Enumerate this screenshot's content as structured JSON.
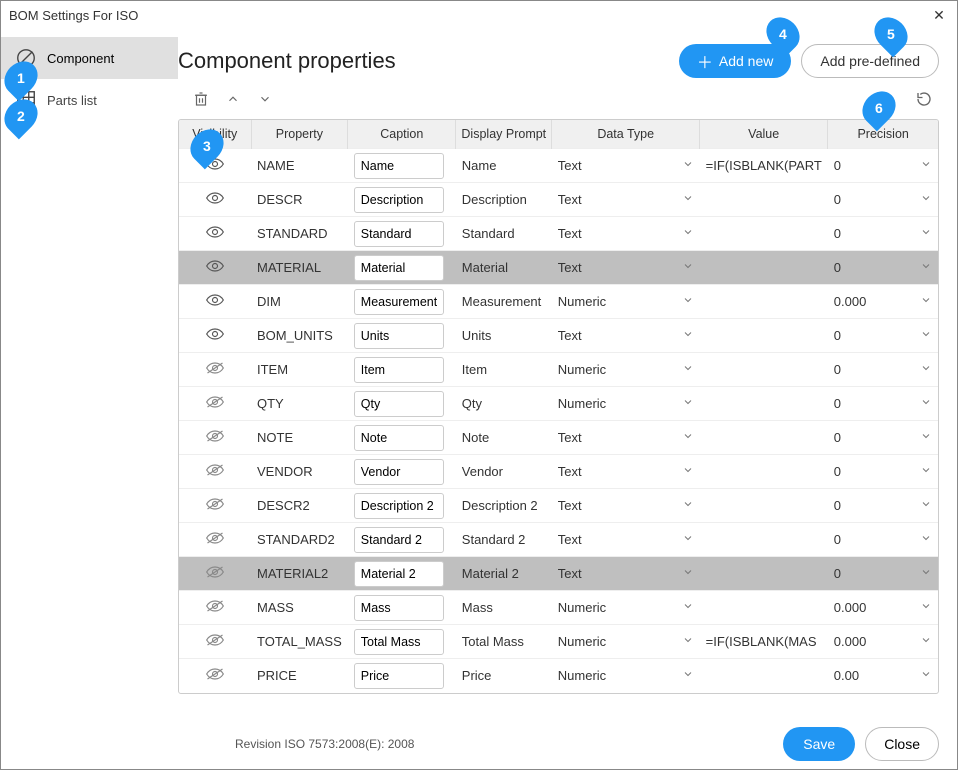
{
  "window": {
    "title": "BOM Settings For  ISO"
  },
  "sidebar": {
    "items": [
      {
        "label": "Component",
        "icon": "component",
        "active": true
      },
      {
        "label": "Parts list",
        "icon": "partslist",
        "active": false
      }
    ]
  },
  "header": {
    "title": "Component properties",
    "add_new": "Add new",
    "add_predefined": "Add pre-defined"
  },
  "columns": [
    "Visibility",
    "Property",
    "Caption",
    "Display Prompt",
    "Data Type",
    "Value",
    "Precision"
  ],
  "rows": [
    {
      "visible": true,
      "property": "NAME",
      "caption": "Name",
      "prompt": "Name",
      "dtype": "Text",
      "dtype_disabled": true,
      "value": "=IF(ISBLANK(PART",
      "precision": "0",
      "selected": false
    },
    {
      "visible": true,
      "property": "DESCR",
      "caption": "Description",
      "prompt": "Description",
      "dtype": "Text",
      "dtype_disabled": false,
      "value": "",
      "precision": "0",
      "selected": false
    },
    {
      "visible": true,
      "property": "STANDARD",
      "caption": "Standard",
      "prompt": "Standard",
      "dtype": "Text",
      "dtype_disabled": false,
      "value": "",
      "precision": "0",
      "selected": false
    },
    {
      "visible": true,
      "property": "MATERIAL",
      "caption": "Material",
      "prompt": "Material",
      "dtype": "Text",
      "dtype_disabled": false,
      "value": "",
      "precision": "0",
      "selected": true
    },
    {
      "visible": true,
      "property": "DIM",
      "caption": "Measurement",
      "prompt": "Measurement",
      "dtype": "Numeric",
      "dtype_disabled": false,
      "value": "",
      "precision": "0.000",
      "selected": false
    },
    {
      "visible": true,
      "property": "BOM_UNITS",
      "caption": "Units",
      "prompt": "Units",
      "dtype": "Text",
      "dtype_disabled": true,
      "value": "",
      "precision": "0",
      "selected": false
    },
    {
      "visible": false,
      "property": "ITEM",
      "caption": "Item",
      "prompt": "Item",
      "dtype": "Numeric",
      "dtype_disabled": false,
      "value": "",
      "precision": "0",
      "selected": false
    },
    {
      "visible": false,
      "property": "QTY",
      "caption": "Qty",
      "prompt": "Qty",
      "dtype": "Numeric",
      "dtype_disabled": true,
      "value": "",
      "precision": "0",
      "selected": false
    },
    {
      "visible": false,
      "property": "NOTE",
      "caption": "Note",
      "prompt": "Note",
      "dtype": "Text",
      "dtype_disabled": false,
      "value": "",
      "precision": "0",
      "selected": false
    },
    {
      "visible": false,
      "property": "VENDOR",
      "caption": "Vendor",
      "prompt": "Vendor",
      "dtype": "Text",
      "dtype_disabled": false,
      "value": "",
      "precision": "0",
      "selected": false
    },
    {
      "visible": false,
      "property": "DESCR2",
      "caption": "Description 2",
      "prompt": "Description 2",
      "dtype": "Text",
      "dtype_disabled": false,
      "value": "",
      "precision": "0",
      "selected": false
    },
    {
      "visible": false,
      "property": "STANDARD2",
      "caption": "Standard 2",
      "prompt": "Standard 2",
      "dtype": "Text",
      "dtype_disabled": false,
      "value": "",
      "precision": "0",
      "selected": false
    },
    {
      "visible": false,
      "property": "MATERIAL2",
      "caption": "Material 2",
      "prompt": "Material 2",
      "dtype": "Text",
      "dtype_disabled": false,
      "value": "",
      "precision": "0",
      "selected": true
    },
    {
      "visible": false,
      "property": "MASS",
      "caption": "Mass",
      "prompt": "Mass",
      "dtype": "Numeric",
      "dtype_disabled": false,
      "value": "",
      "precision": "0.000",
      "selected": false
    },
    {
      "visible": false,
      "property": "TOTAL_MASS",
      "caption": "Total Mass",
      "prompt": "Total Mass",
      "dtype": "Numeric",
      "dtype_disabled": false,
      "value": "=IF(ISBLANK(MAS",
      "precision": "0.000",
      "selected": false
    },
    {
      "visible": false,
      "property": "PRICE",
      "caption": "Price",
      "prompt": "Price",
      "dtype": "Numeric",
      "dtype_disabled": false,
      "value": "",
      "precision": "0.00",
      "selected": false
    }
  ],
  "footer": {
    "revision": "Revision ISO 7573:2008(E): 2008",
    "save": "Save",
    "close": "Close"
  },
  "callouts": {
    "c1": "1",
    "c2": "2",
    "c3": "3",
    "c4": "4",
    "c5": "5",
    "c6": "6"
  },
  "colors": {
    "accent": "#2196f3",
    "selected_row": "#bfbfbf"
  }
}
